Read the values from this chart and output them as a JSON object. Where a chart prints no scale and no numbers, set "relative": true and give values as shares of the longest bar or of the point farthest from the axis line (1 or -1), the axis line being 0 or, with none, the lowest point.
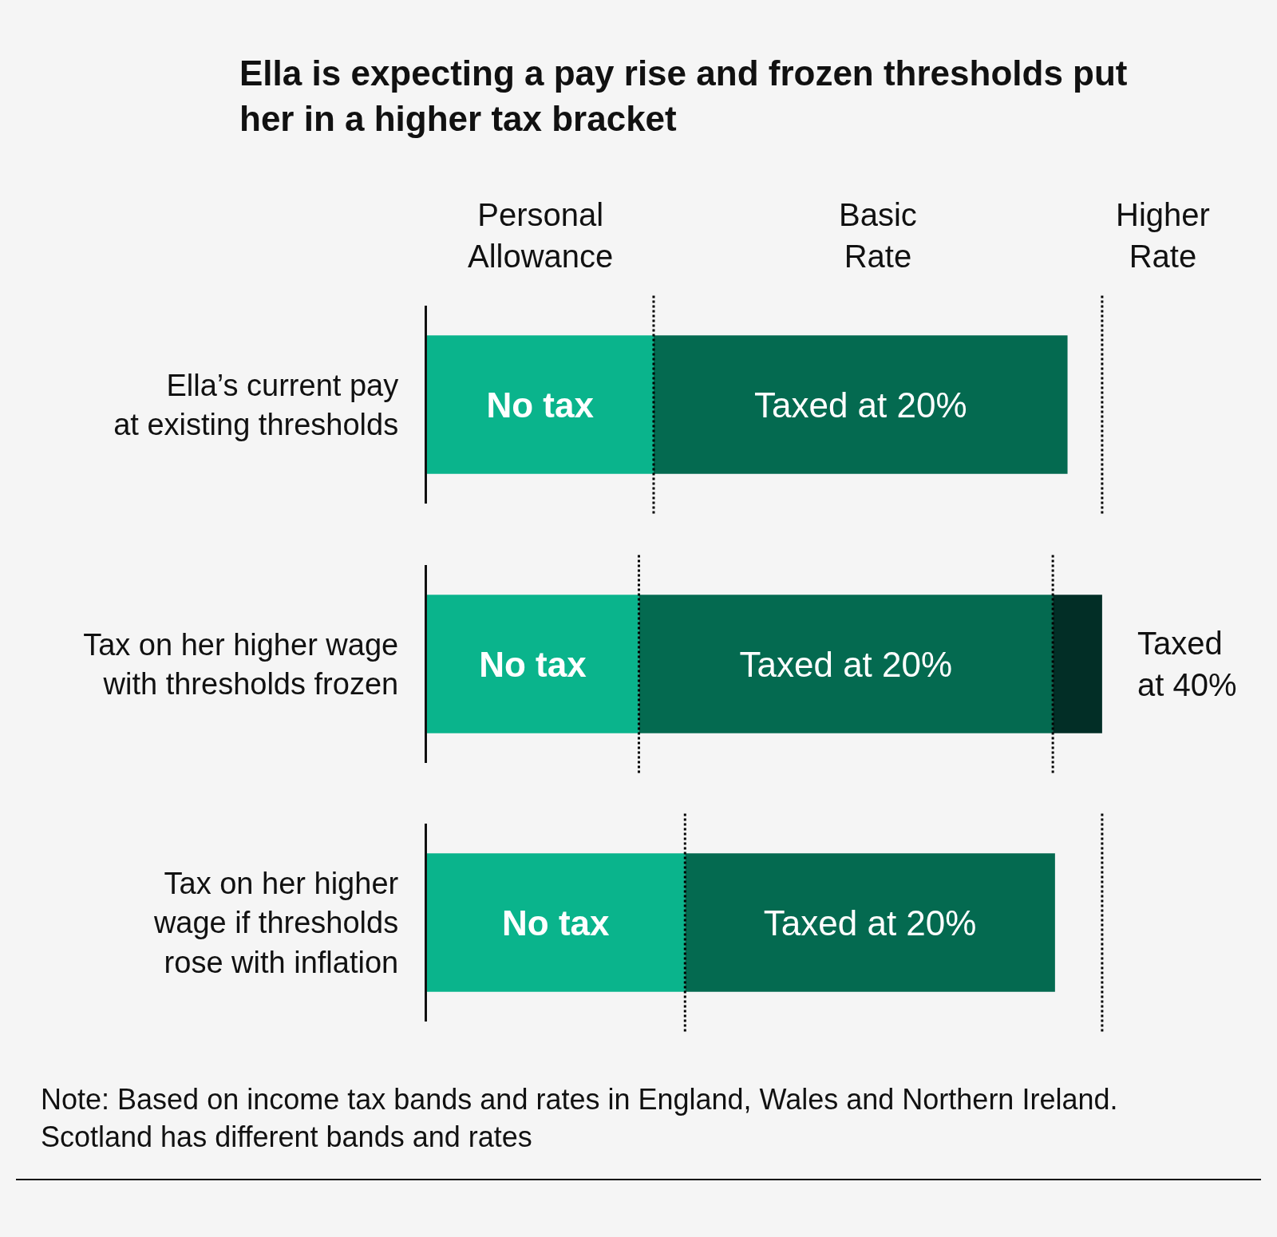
{
  "chart_data": [
    {
      "type": "bar",
      "orientation": "horizontal",
      "stacked": true,
      "relative": true,
      "tick_labels": "y",
      "title": "Ella is expecting a pay rise and frozen thresholds put\nher in a higher tax bracket",
      "annotations": [
        "Personal\nAllowance",
        "Basic\nRate",
        "Higher\nRate"
      ],
      "categories": [
        "Ella’s current pay\nat existing thresholds"
      ],
      "series": [
        {
          "name": "No tax",
          "color": "#0ab48c",
          "values": [
            0.354
          ]
        },
        {
          "name": "Taxed at 20%",
          "color": "#046a50",
          "values": [
            0.646
          ]
        }
      ],
      "ref_lines": [
        {
          "axis": "x",
          "value": 0.354,
          "color": "#000000",
          "line_style": "dotted"
        },
        {
          "axis": "x",
          "value": 1.054,
          "color": "#000000",
          "line_style": "dotted"
        }
      ]
    },
    {
      "type": "bar",
      "orientation": "horizontal",
      "stacked": true,
      "relative": true,
      "tick_labels": "y",
      "categories": [
        "Tax on her higher wage\nwith thresholds frozen"
      ],
      "series": [
        {
          "name": "No tax",
          "color": "#0ab48c",
          "values": [
            0.314
          ]
        },
        {
          "name": "Taxed at 20%",
          "color": "#046a50",
          "values": [
            0.613
          ]
        },
        {
          "name": "Taxed\nat 40%",
          "color": "#022e26",
          "values": [
            0.073
          ]
        }
      ],
      "ref_lines": [
        {
          "axis": "x",
          "value": 0.314,
          "color": "#000000",
          "line_style": "dotted"
        },
        {
          "axis": "x",
          "value": 0.927,
          "color": "#000000",
          "line_style": "dotted"
        }
      ]
    },
    {
      "type": "bar",
      "orientation": "horizontal",
      "stacked": true,
      "relative": true,
      "tick_labels": "y",
      "categories": [
        "Tax on her higher\nwage if thresholds\nrose with inflation"
      ],
      "series": [
        {
          "name": "No tax",
          "color": "#0ab48c",
          "values": [
            0.411
          ]
        },
        {
          "name": "Taxed at 20%",
          "color": "#046a50",
          "values": [
            0.589
          ]
        }
      ],
      "ref_lines": [
        {
          "axis": "x",
          "value": 0.411,
          "color": "#000000",
          "line_style": "dotted"
        },
        {
          "axis": "x",
          "value": 1.075,
          "color": "#000000",
          "line_style": "dotted"
        }
      ],
      "annotations": [
        "Note: Based on income tax bands and rates in England, Wales and Northern Ireland.\nScotland has different bands and rates"
      ]
    }
  ]
}
